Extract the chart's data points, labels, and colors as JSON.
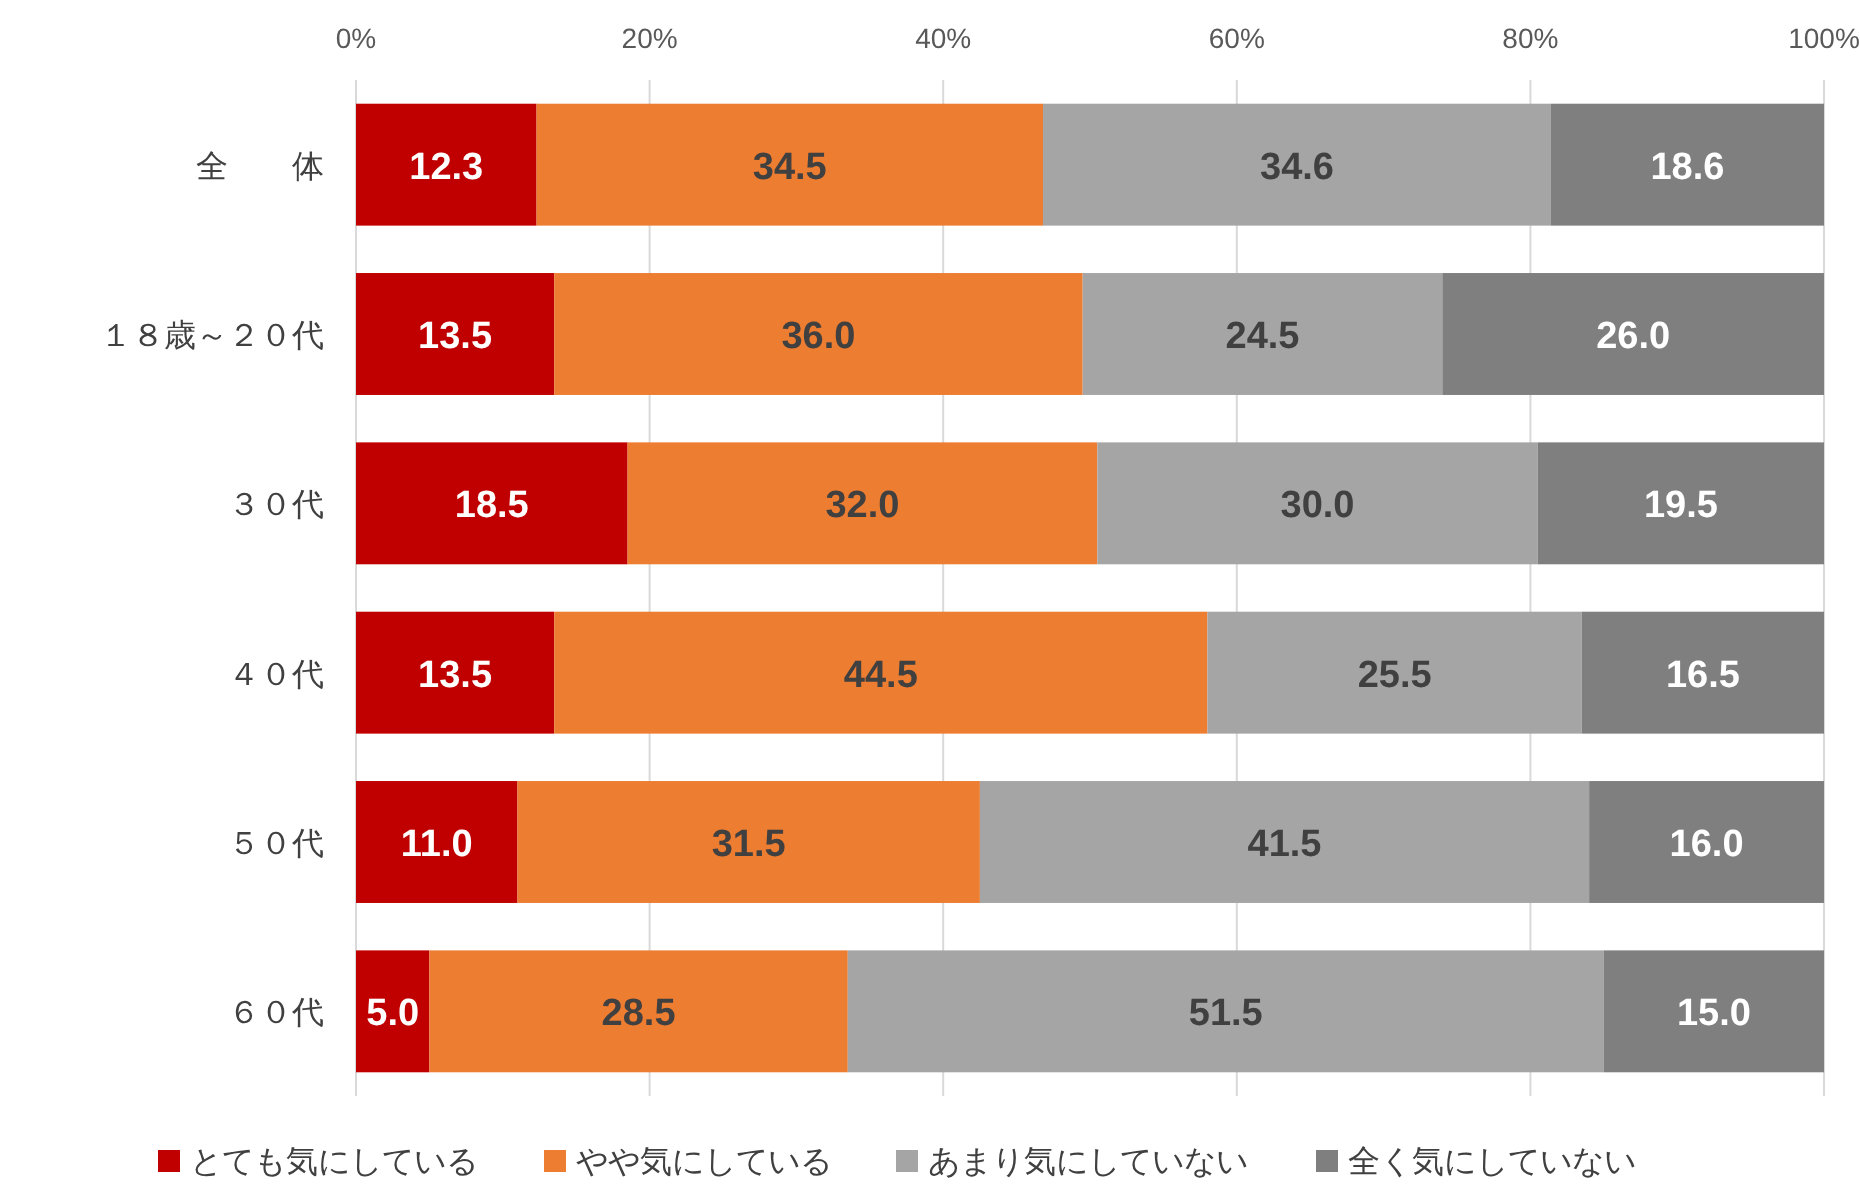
{
  "chart_data": {
    "type": "bar",
    "orientation": "horizontal",
    "stacked": true,
    "grid": "x",
    "legend": "bottom",
    "categories": [
      "全　　体",
      "１８歳～２０代",
      "３０代",
      "４０代",
      "５０代",
      "６０代"
    ],
    "xlim": [
      0,
      100
    ],
    "xticks": [
      {
        "value": 0,
        "label": "0%"
      },
      {
        "value": 20,
        "label": "20%"
      },
      {
        "value": 40,
        "label": "40%"
      },
      {
        "value": 60,
        "label": "60%"
      },
      {
        "value": 80,
        "label": "80%"
      },
      {
        "value": 100,
        "label": "100%"
      }
    ],
    "series": [
      {
        "name": "とても気にしている",
        "color": "#c00000",
        "values": [
          12.3,
          13.5,
          18.5,
          13.5,
          11.0,
          5.0
        ],
        "value_labels": [
          "12.3",
          "13.5",
          "18.5",
          "13.5",
          "11.0",
          "5.0"
        ]
      },
      {
        "name": "やや気にしている",
        "color": "#ed7d31",
        "values": [
          34.5,
          36.0,
          32.0,
          44.5,
          31.5,
          28.5
        ],
        "value_labels": [
          "34.5",
          "36.0",
          "32.0",
          "44.5",
          "31.5",
          "28.5"
        ]
      },
      {
        "name": "あまり気にしていない",
        "color": "#a5a5a5",
        "values": [
          34.6,
          24.5,
          30.0,
          25.5,
          41.5,
          51.5
        ],
        "value_labels": [
          "34.6",
          "24.5",
          "30.0",
          "25.5",
          "41.5",
          "51.5"
        ]
      },
      {
        "name": "全く気にしていない",
        "color": "#7f7f7f",
        "values": [
          18.6,
          26.0,
          19.5,
          16.5,
          16.0,
          15.0
        ],
        "value_labels": [
          "18.6",
          "26.0",
          "19.5",
          "16.5",
          "16.0",
          "15.0"
        ]
      }
    ]
  }
}
